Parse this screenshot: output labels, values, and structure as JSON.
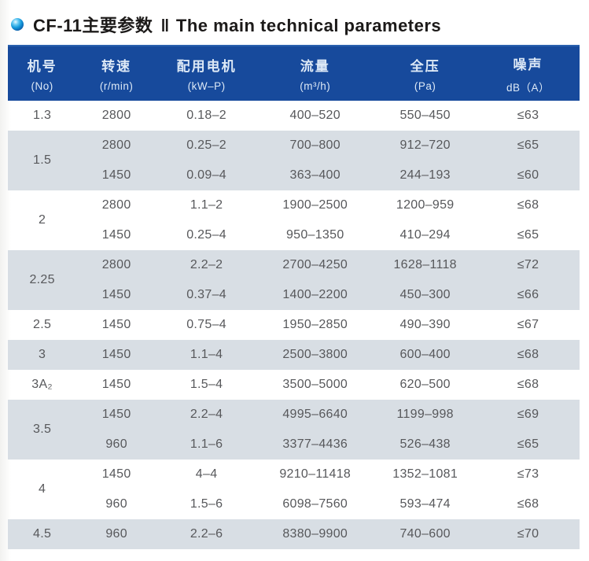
{
  "title": {
    "zh": "CF-11主要参数",
    "divider": "‖",
    "en": "The main technical parameters"
  },
  "table": {
    "columns": [
      {
        "zh": "机号",
        "sub": "(No)"
      },
      {
        "zh": "转速",
        "sub": "(r/min)"
      },
      {
        "zh": "配用电机",
        "sub": "(kW–P)"
      },
      {
        "zh": "流量",
        "sub": "(m³/h)"
      },
      {
        "zh": "全压",
        "sub": "(Pa)"
      },
      {
        "zh": "噪声",
        "sub": "dB（A）"
      }
    ],
    "groups": [
      {
        "no": "1.3",
        "shade": false,
        "rows": [
          [
            "2800",
            "0.18–2",
            "400–520",
            "550–450",
            "≤63"
          ]
        ]
      },
      {
        "no": "1.5",
        "shade": true,
        "rows": [
          [
            "2800",
            "0.25–2",
            "700–800",
            "912–720",
            "≤65"
          ],
          [
            "1450",
            "0.09–4",
            "363–400",
            "244–193",
            "≤60"
          ]
        ]
      },
      {
        "no": "2",
        "shade": false,
        "rows": [
          [
            "2800",
            "1.1–2",
            "1900–2500",
            "1200–959",
            "≤68"
          ],
          [
            "1450",
            "0.25–4",
            "950–1350",
            "410–294",
            "≤65"
          ]
        ]
      },
      {
        "no": "2.25",
        "shade": true,
        "rows": [
          [
            "2800",
            "2.2–2",
            "2700–4250",
            "1628–1118",
            "≤72"
          ],
          [
            "1450",
            "0.37–4",
            "1400–2200",
            "450–300",
            "≤66"
          ]
        ]
      },
      {
        "no": "2.5",
        "shade": false,
        "rows": [
          [
            "1450",
            "0.75–4",
            "1950–2850",
            "490–390",
            "≤67"
          ]
        ]
      },
      {
        "no": "3",
        "shade": true,
        "rows": [
          [
            "1450",
            "1.1–4",
            "2500–3800",
            "600–400",
            "≤68"
          ]
        ]
      },
      {
        "no": "3A₂",
        "shade": false,
        "rows": [
          [
            "1450",
            "1.5–4",
            "3500–5000",
            "620–500",
            "≤68"
          ]
        ]
      },
      {
        "no": "3.5",
        "shade": true,
        "rows": [
          [
            "1450",
            "2.2–4",
            "4995–6640",
            "1199–998",
            "≤69"
          ],
          [
            "960",
            "1.1–6",
            "3377–4436",
            "526–438",
            "≤65"
          ]
        ]
      },
      {
        "no": "4",
        "shade": false,
        "rows": [
          [
            "1450",
            "4–4",
            "9210–11418",
            "1352–1081",
            "≤73"
          ],
          [
            "960",
            "1.5–6",
            "6098–7560",
            "593–474",
            "≤68"
          ]
        ]
      },
      {
        "no": "4.5",
        "shade": true,
        "rows": [
          [
            "960",
            "2.2–6",
            "8380–9900",
            "740–600",
            "≤70"
          ]
        ]
      }
    ]
  }
}
